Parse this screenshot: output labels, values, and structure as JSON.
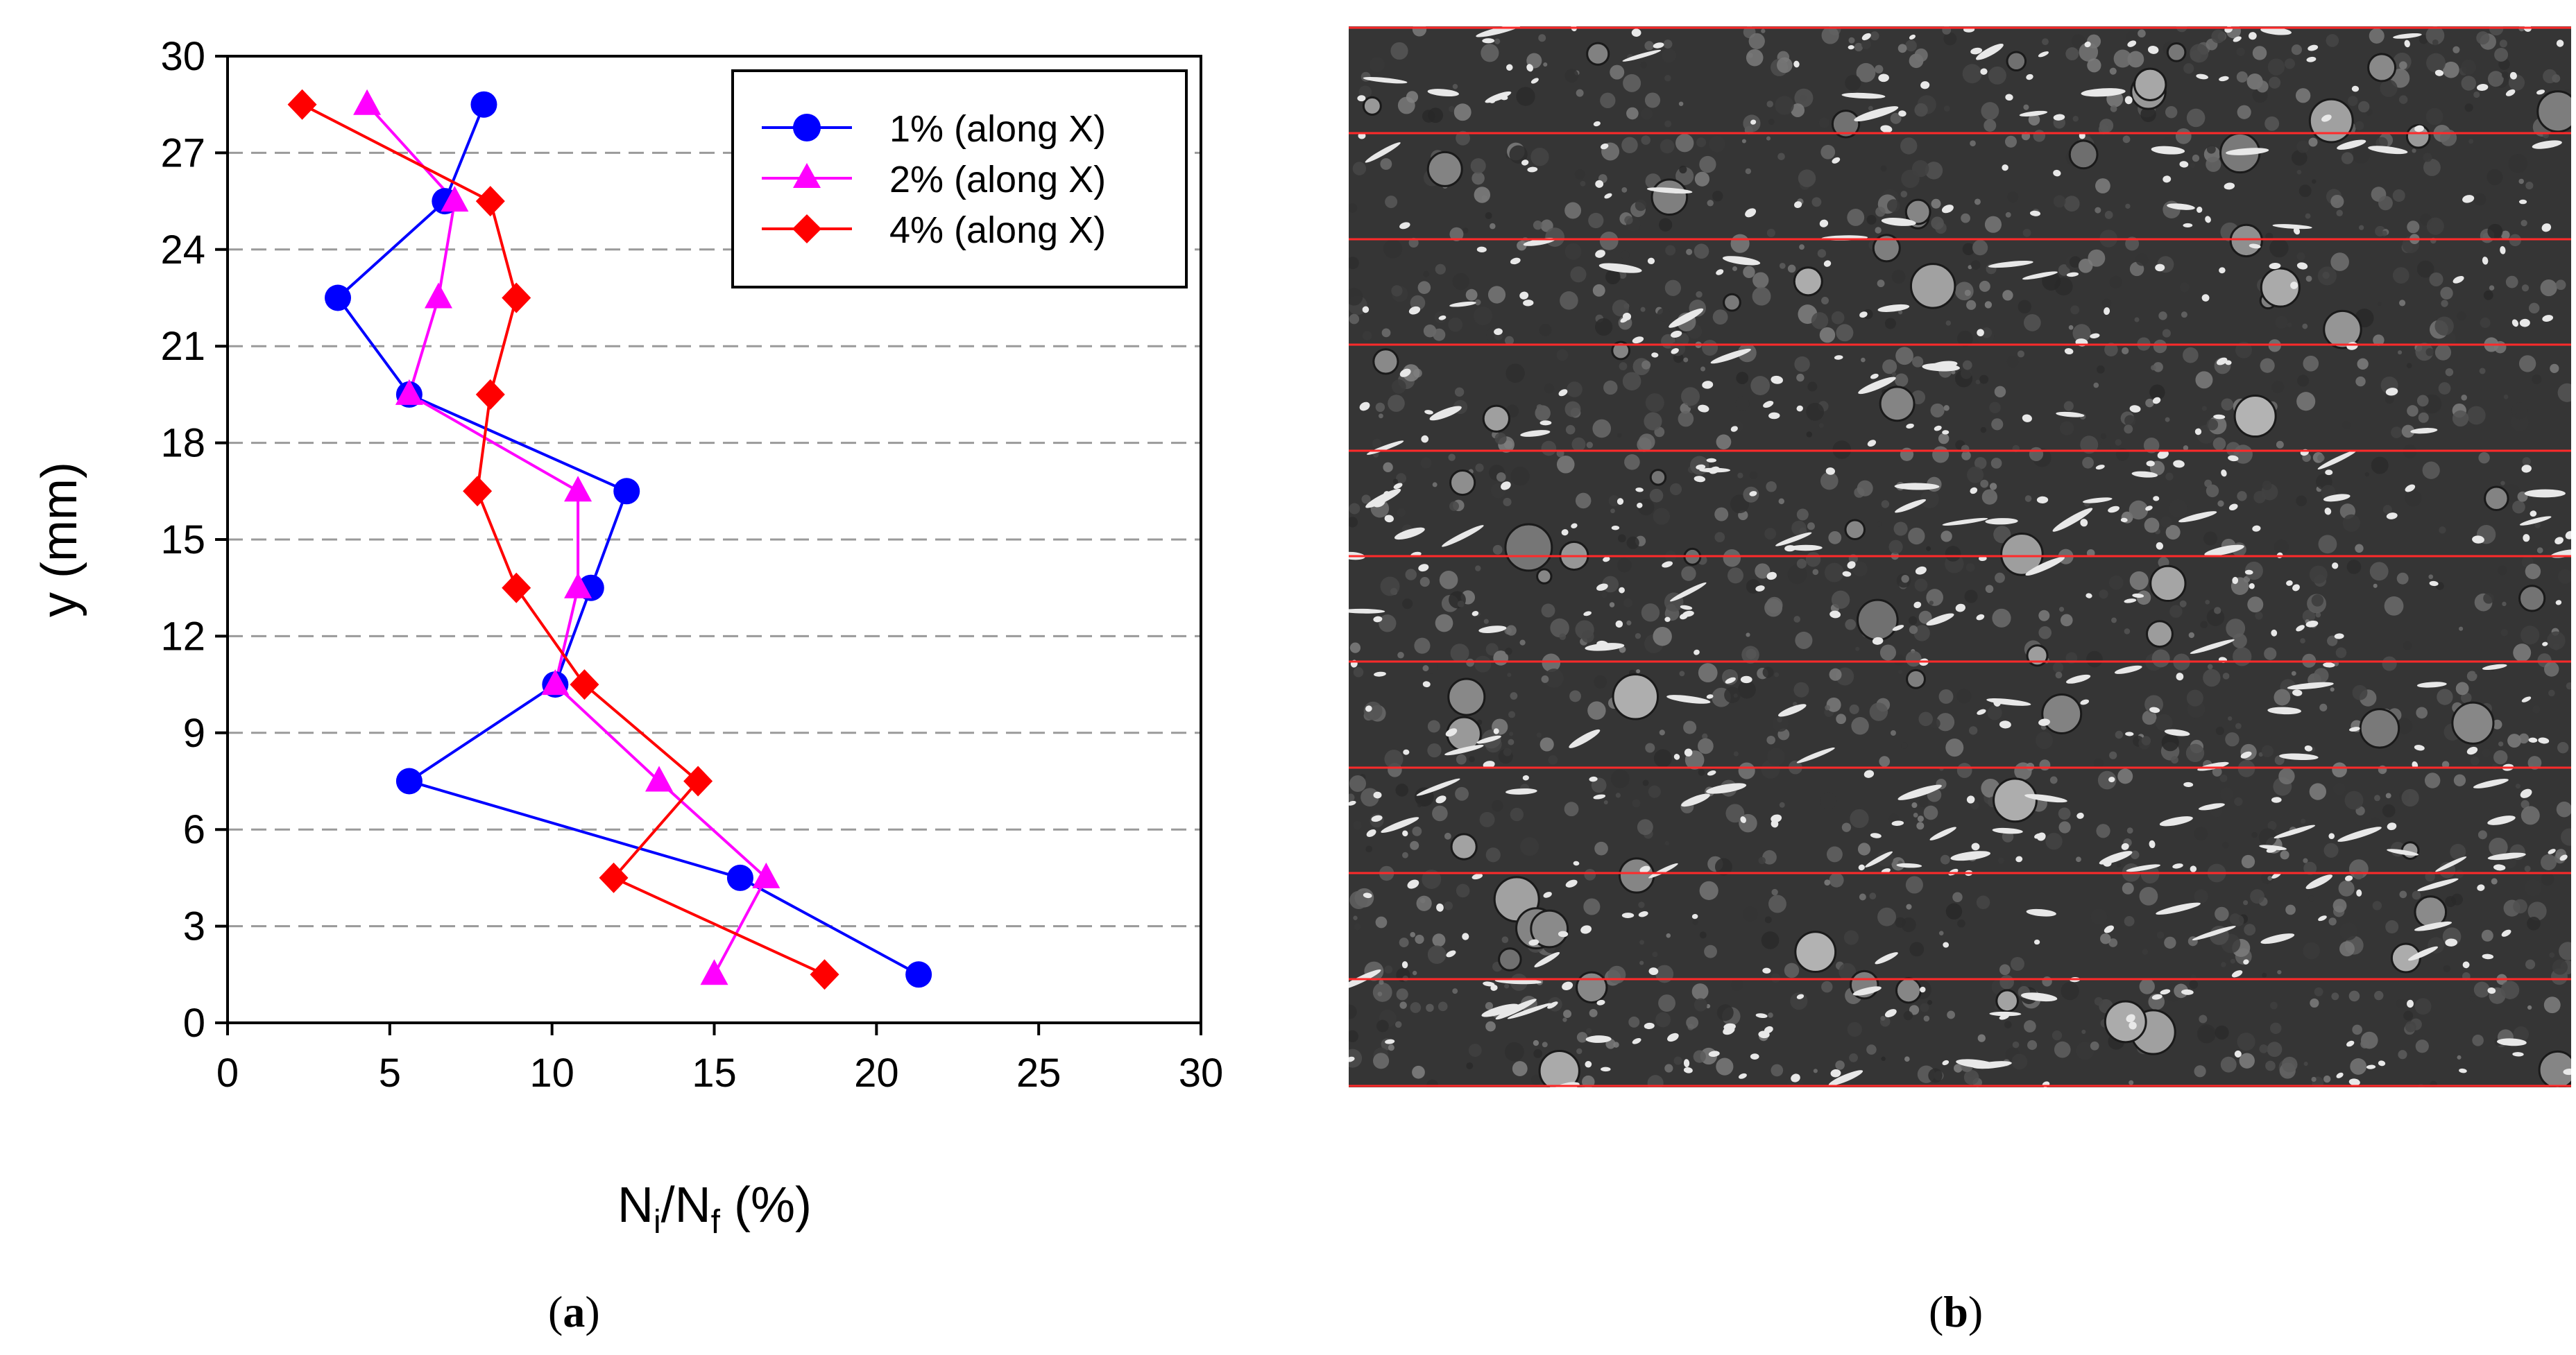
{
  "chart_data": {
    "type": "line",
    "title": "",
    "xlabel": "N_i/N_f (%)",
    "xlabel_main_a": "N",
    "xlabel_sub_a": "i",
    "xlabel_slash": "/N",
    "xlabel_sub_b": "f",
    "xlabel_tail": " (%)",
    "ylabel": "y (mm)",
    "xlim": [
      0,
      30
    ],
    "ylim": [
      0,
      30
    ],
    "xticks": [
      0,
      5,
      10,
      15,
      20,
      25,
      30
    ],
    "yticks": [
      0,
      3,
      6,
      9,
      12,
      15,
      18,
      21,
      24,
      27,
      30
    ],
    "grid": "horizontal dashed",
    "legend_position": "top-right",
    "series": [
      {
        "name": "1% (along X)",
        "color": "#0000ff",
        "marker": "circle",
        "points": [
          [
            7.9,
            28.5
          ],
          [
            6.7,
            25.5
          ],
          [
            3.4,
            22.5
          ],
          [
            5.6,
            19.5
          ],
          [
            12.3,
            16.5
          ],
          [
            11.2,
            13.5
          ],
          [
            10.1,
            10.5
          ],
          [
            5.6,
            7.5
          ],
          [
            15.8,
            4.5
          ],
          [
            21.3,
            1.5
          ]
        ]
      },
      {
        "name": "2% (along X)",
        "color": "#ff00ff",
        "marker": "triangle",
        "points": [
          [
            4.3,
            28.5
          ],
          [
            7.0,
            25.5
          ],
          [
            6.5,
            22.5
          ],
          [
            5.6,
            19.5
          ],
          [
            10.8,
            16.5
          ],
          [
            10.8,
            13.5
          ],
          [
            10.1,
            10.5
          ],
          [
            13.3,
            7.5
          ],
          [
            16.6,
            4.5
          ],
          [
            15.0,
            1.5
          ]
        ]
      },
      {
        "name": "4% (along X)",
        "color": "#ff0000",
        "marker": "diamond",
        "points": [
          [
            2.3,
            28.5
          ],
          [
            8.1,
            25.5
          ],
          [
            8.9,
            22.5
          ],
          [
            8.1,
            19.5
          ],
          [
            7.7,
            16.5
          ],
          [
            8.9,
            13.5
          ],
          [
            11.0,
            10.5
          ],
          [
            14.5,
            7.5
          ],
          [
            11.9,
            4.5
          ],
          [
            18.4,
            1.5
          ]
        ]
      }
    ]
  },
  "captions": {
    "a": "a",
    "b": "b"
  }
}
